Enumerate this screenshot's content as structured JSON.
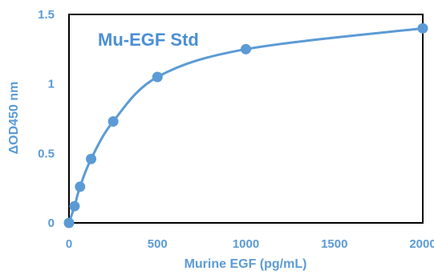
{
  "chart_data": {
    "type": "scatter",
    "title": "Mu-EGF Std",
    "xlabel": "Murine EGF (pg/mL)",
    "ylabel": "ΔOD450 nm",
    "xlim": [
      0,
      2000
    ],
    "ylim": [
      0,
      1.5
    ],
    "xticks": [
      "0",
      "500",
      "1000",
      "1500",
      "2000"
    ],
    "yticks": [
      "0",
      "0.5",
      "1",
      "1.5"
    ],
    "grid": false,
    "legend": "none",
    "smooth_line": true,
    "color": "#5b9bd5",
    "series": [
      {
        "x": [
          0,
          31.25,
          62.5,
          125,
          250,
          500,
          1000,
          2000
        ],
        "y": [
          0.0,
          0.12,
          0.26,
          0.46,
          0.73,
          1.05,
          1.25,
          1.4
        ]
      }
    ]
  }
}
